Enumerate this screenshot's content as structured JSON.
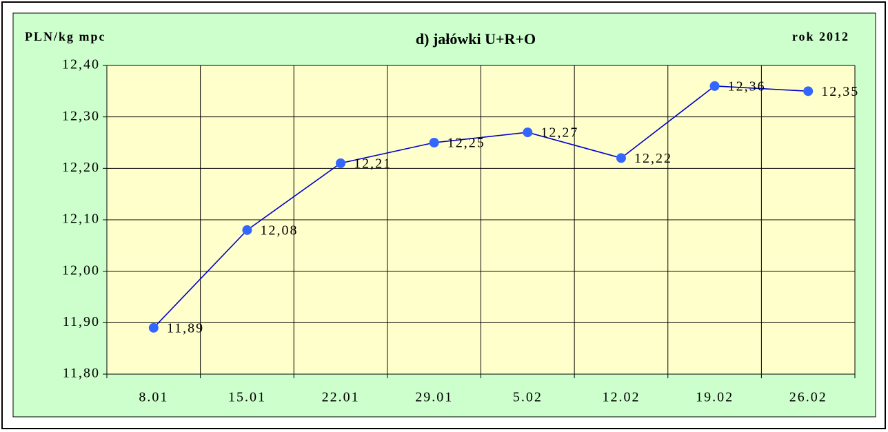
{
  "chart_data": {
    "type": "line",
    "title": "d) jałówki U+R+O",
    "y_label": "PLN/kg mpc",
    "subtitle": "rok 2012",
    "categories": [
      "8.01",
      "15.01",
      "22.01",
      "29.01",
      "5.02",
      "12.02",
      "19.02",
      "26.02"
    ],
    "series": [
      {
        "name": "jałówki U+R+O",
        "color": "#0000cc",
        "marker_color": "#3366ff",
        "values": [
          11.89,
          12.08,
          12.21,
          12.25,
          12.27,
          12.22,
          12.36,
          12.35
        ],
        "value_labels": [
          "11,89",
          "12,08",
          "12,21",
          "12,25",
          "12,27",
          "12,22",
          "12,36",
          "12,35"
        ]
      }
    ],
    "ylim": [
      11.8,
      12.4
    ],
    "yticks": [
      {
        "value": 11.8,
        "label": "11,80"
      },
      {
        "value": 11.9,
        "label": "11,90"
      },
      {
        "value": 12.0,
        "label": "12,00"
      },
      {
        "value": 12.1,
        "label": "12,10"
      },
      {
        "value": 12.2,
        "label": "12,20"
      },
      {
        "value": 12.3,
        "label": "12,30"
      },
      {
        "value": 12.4,
        "label": "12,40"
      }
    ],
    "grid": true
  }
}
